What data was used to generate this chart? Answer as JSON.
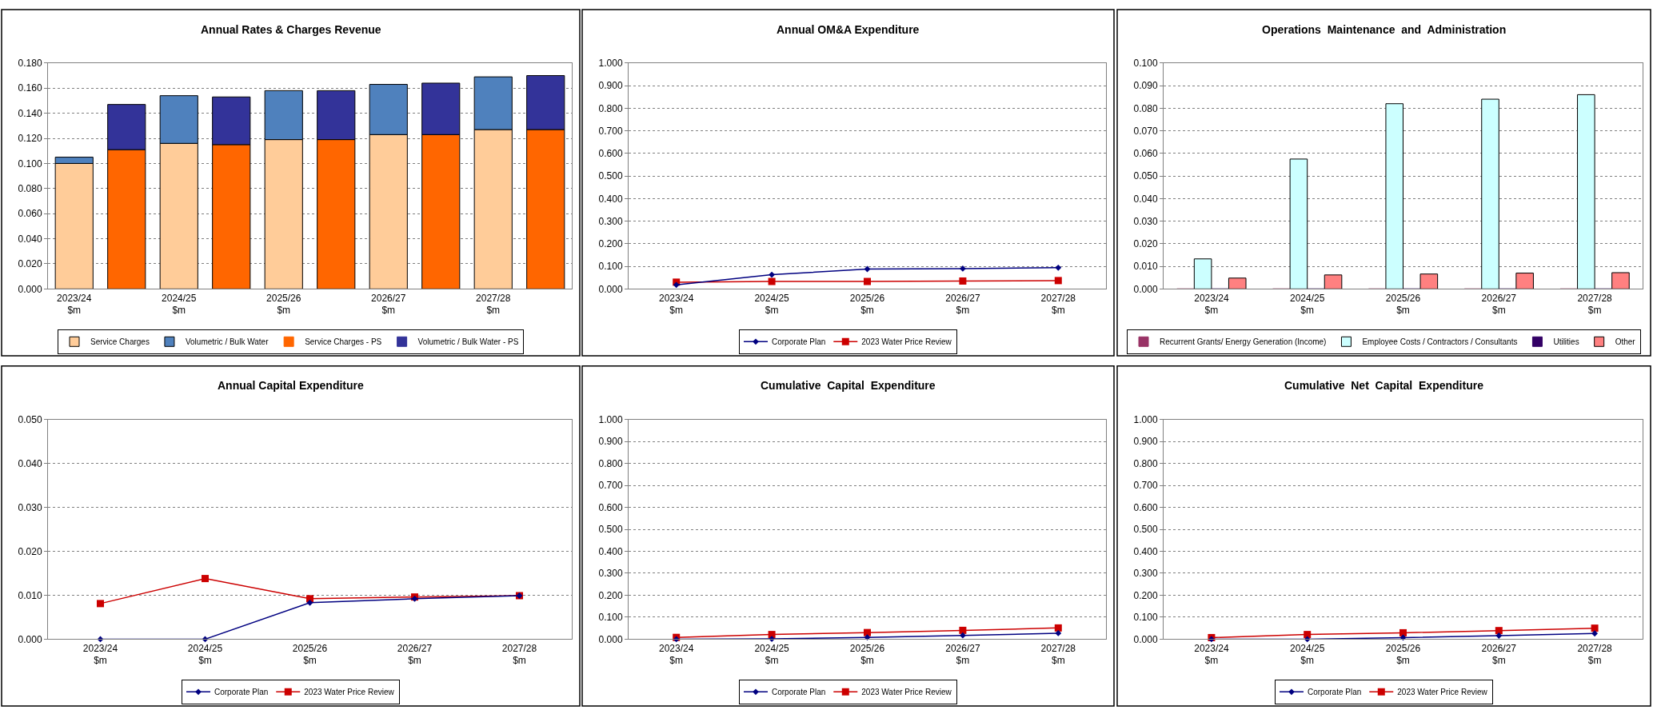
{
  "chart_data": [
    {
      "type": "bar",
      "title": "Annual Rates & Charges Revenue",
      "stacked": true,
      "grid": "y",
      "legend": "bottom",
      "categories": [
        "2023/24\n$m",
        null,
        "2024/25\n$m",
        null,
        "2025/26\n$m",
        null,
        "2026/27\n$m",
        null,
        "2027/28\n$m",
        null
      ],
      "ylim": [
        0,
        0.18
      ],
      "yticks": [
        {
          "value": 0,
          "label": "0.000"
        },
        {
          "value": 0.02,
          "label": "0.020"
        },
        {
          "value": 0.04,
          "label": "0.040"
        },
        {
          "value": 0.06,
          "label": "0.060"
        },
        {
          "value": 0.08,
          "label": "0.080"
        },
        {
          "value": 0.1,
          "label": "0.100"
        },
        {
          "value": 0.12,
          "label": "0.120"
        },
        {
          "value": 0.14,
          "label": "0.140"
        },
        {
          "value": 0.16,
          "label": "0.160"
        },
        {
          "value": 0.18,
          "label": "0.180"
        }
      ],
      "series": [
        {
          "name": "Service Charges",
          "color": "#ffcc99",
          "values": [
            0.1,
            null,
            0.116,
            null,
            0.119,
            null,
            0.123,
            null,
            0.127,
            null
          ]
        },
        {
          "name": "Volumetric / Bulk Water",
          "color": "#4f81bd",
          "values": [
            0.005,
            null,
            0.038,
            null,
            0.039,
            null,
            0.04,
            null,
            0.042,
            null
          ]
        },
        {
          "name": "Service Charges - PS",
          "color": "#ff6600",
          "values": [
            null,
            0.111,
            null,
            0.115,
            null,
            0.119,
            null,
            0.123,
            null,
            0.127
          ]
        },
        {
          "name": "Volumetric / Bulk Water - PS",
          "color": "#333399",
          "values": [
            null,
            0.036,
            null,
            0.038,
            null,
            0.039,
            null,
            0.041,
            null,
            0.043
          ]
        }
      ]
    },
    {
      "type": "line",
      "title": "Annual OM&A Expenditure",
      "grid": "y",
      "legend": "bottom",
      "categories": [
        "2023/24\n$m",
        "2024/25\n$m",
        "2025/26\n$m",
        "2026/27\n$m",
        "2027/28\n$m"
      ],
      "ylim": [
        0,
        1
      ],
      "yticks": [
        {
          "value": 0,
          "label": "0.000"
        },
        {
          "value": 0.1,
          "label": "0.100"
        },
        {
          "value": 0.2,
          "label": "0.200"
        },
        {
          "value": 0.3,
          "label": "0.300"
        },
        {
          "value": 0.4,
          "label": "0.400"
        },
        {
          "value": 0.5,
          "label": "0.500"
        },
        {
          "value": 0.6,
          "label": "0.600"
        },
        {
          "value": 0.7,
          "label": "0.700"
        },
        {
          "value": 0.8,
          "label": "0.800"
        },
        {
          "value": 0.9,
          "label": "0.900"
        },
        {
          "value": 1,
          "label": "1.000"
        }
      ],
      "series": [
        {
          "name": "Corporate Plan",
          "color": "#000080",
          "marker": "diamond",
          "values": [
            0.018,
            0.063,
            0.088,
            0.09,
            0.094
          ]
        },
        {
          "name": "2023 Water Price Review",
          "color": "#cc0000",
          "marker": "square",
          "values": [
            0.03,
            0.033,
            0.033,
            0.035,
            0.037
          ]
        }
      ]
    },
    {
      "type": "bar",
      "title": "Operations  Maintenance  and  Administration",
      "grid": "y",
      "legend": "bottom",
      "categories": [
        "2023/24\n$m",
        "2024/25\n$m",
        "2025/26\n$m",
        "2026/27\n$m",
        "2027/28\n$m"
      ],
      "ylim": [
        0,
        0.1
      ],
      "yticks": [
        {
          "value": 0,
          "label": "0.000"
        },
        {
          "value": 0.01,
          "label": "0.010"
        },
        {
          "value": 0.02,
          "label": "0.020"
        },
        {
          "value": 0.03,
          "label": "0.030"
        },
        {
          "value": 0.04,
          "label": "0.040"
        },
        {
          "value": 0.05,
          "label": "0.050"
        },
        {
          "value": 0.06,
          "label": "0.060"
        },
        {
          "value": 0.07,
          "label": "0.070"
        },
        {
          "value": 0.08,
          "label": "0.080"
        },
        {
          "value": 0.09,
          "label": "0.090"
        },
        {
          "value": 0.1,
          "label": "0.100"
        }
      ],
      "series": [
        {
          "name": "Recurrent Grants/ Energy Generation (Income)",
          "color": "#993366",
          "values": [
            0,
            0,
            0,
            0,
            0
          ]
        },
        {
          "name": "Employee Costs / Contractors / Consultants",
          "color": "#ccffff",
          "values": [
            0.0133,
            0.0575,
            0.082,
            0.084,
            0.086
          ]
        },
        {
          "name": "Utilities",
          "color": "#330066",
          "values": [
            0,
            0,
            0,
            0,
            0
          ]
        },
        {
          "name": "Other",
          "color": "#ff8080",
          "values": [
            0.0048,
            0.0062,
            0.0066,
            0.007,
            0.0072
          ]
        }
      ]
    },
    {
      "type": "line",
      "title": "Annual Capital Expenditure",
      "grid": "y",
      "legend": "bottom",
      "categories": [
        "2023/24\n$m",
        "2024/25\n$m",
        "2025/26\n$m",
        "2026/27\n$m",
        "2027/28\n$m"
      ],
      "ylim": [
        0,
        0.05
      ],
      "yticks": [
        {
          "value": 0,
          "label": "0.000"
        },
        {
          "value": 0.01,
          "label": "0.010"
        },
        {
          "value": 0.02,
          "label": "0.020"
        },
        {
          "value": 0.03,
          "label": "0.030"
        },
        {
          "value": 0.04,
          "label": "0.040"
        },
        {
          "value": 0.05,
          "label": "0.050"
        }
      ],
      "series": [
        {
          "name": "Corporate Plan",
          "color": "#000080",
          "marker": "diamond",
          "values": [
            0,
            0,
            0.0083,
            0.0092,
            0.0099
          ]
        },
        {
          "name": "2023 Water Price Review",
          "color": "#cc0000",
          "marker": "square",
          "values": [
            0.0081,
            0.0138,
            0.0092,
            0.0096,
            0.0099
          ]
        }
      ]
    },
    {
      "type": "line",
      "title": "Cumulative  Capital  Expenditure",
      "grid": "y",
      "legend": "bottom",
      "categories": [
        "2023/24\n$m",
        "2024/25\n$m",
        "2025/26\n$m",
        "2026/27\n$m",
        "2027/28\n$m"
      ],
      "ylim": [
        0,
        1
      ],
      "yticks": [
        {
          "value": 0,
          "label": "0.000"
        },
        {
          "value": 0.1,
          "label": "0.100"
        },
        {
          "value": 0.2,
          "label": "0.200"
        },
        {
          "value": 0.3,
          "label": "0.300"
        },
        {
          "value": 0.4,
          "label": "0.400"
        },
        {
          "value": 0.5,
          "label": "0.500"
        },
        {
          "value": 0.6,
          "label": "0.600"
        },
        {
          "value": 0.7,
          "label": "0.700"
        },
        {
          "value": 0.8,
          "label": "0.800"
        },
        {
          "value": 0.9,
          "label": "0.900"
        },
        {
          "value": 1,
          "label": "1.000"
        }
      ],
      "series": [
        {
          "name": "Corporate Plan",
          "color": "#000080",
          "marker": "diamond",
          "values": [
            0,
            0.001,
            0.008,
            0.017,
            0.027
          ]
        },
        {
          "name": "2023 Water Price Review",
          "color": "#cc0000",
          "marker": "square",
          "values": [
            0.008,
            0.021,
            0.03,
            0.04,
            0.051
          ]
        }
      ]
    },
    {
      "type": "line",
      "title": "Cumulative  Net  Capital  Expenditure",
      "grid": "y",
      "legend": "bottom",
      "categories": [
        "2023/24\n$m",
        "2024/25\n$m",
        "2025/26\n$m",
        "2026/27\n$m",
        "2027/28\n$m"
      ],
      "ylim": [
        0,
        1
      ],
      "yticks": [
        {
          "value": 0,
          "label": "0.000"
        },
        {
          "value": 0.1,
          "label": "0.100"
        },
        {
          "value": 0.2,
          "label": "0.200"
        },
        {
          "value": 0.3,
          "label": "0.300"
        },
        {
          "value": 0.4,
          "label": "0.400"
        },
        {
          "value": 0.5,
          "label": "0.500"
        },
        {
          "value": 0.6,
          "label": "0.600"
        },
        {
          "value": 0.7,
          "label": "0.700"
        },
        {
          "value": 0.8,
          "label": "0.800"
        },
        {
          "value": 0.9,
          "label": "0.900"
        },
        {
          "value": 1,
          "label": "1.000"
        }
      ],
      "series": [
        {
          "name": "Corporate Plan",
          "color": "#000080",
          "marker": "diamond",
          "values": [
            0,
            0,
            0.007,
            0.016,
            0.026
          ]
        },
        {
          "name": "2023 Water Price Review",
          "color": "#cc0000",
          "marker": "square",
          "values": [
            0.007,
            0.021,
            0.029,
            0.039,
            0.05
          ]
        }
      ]
    }
  ]
}
